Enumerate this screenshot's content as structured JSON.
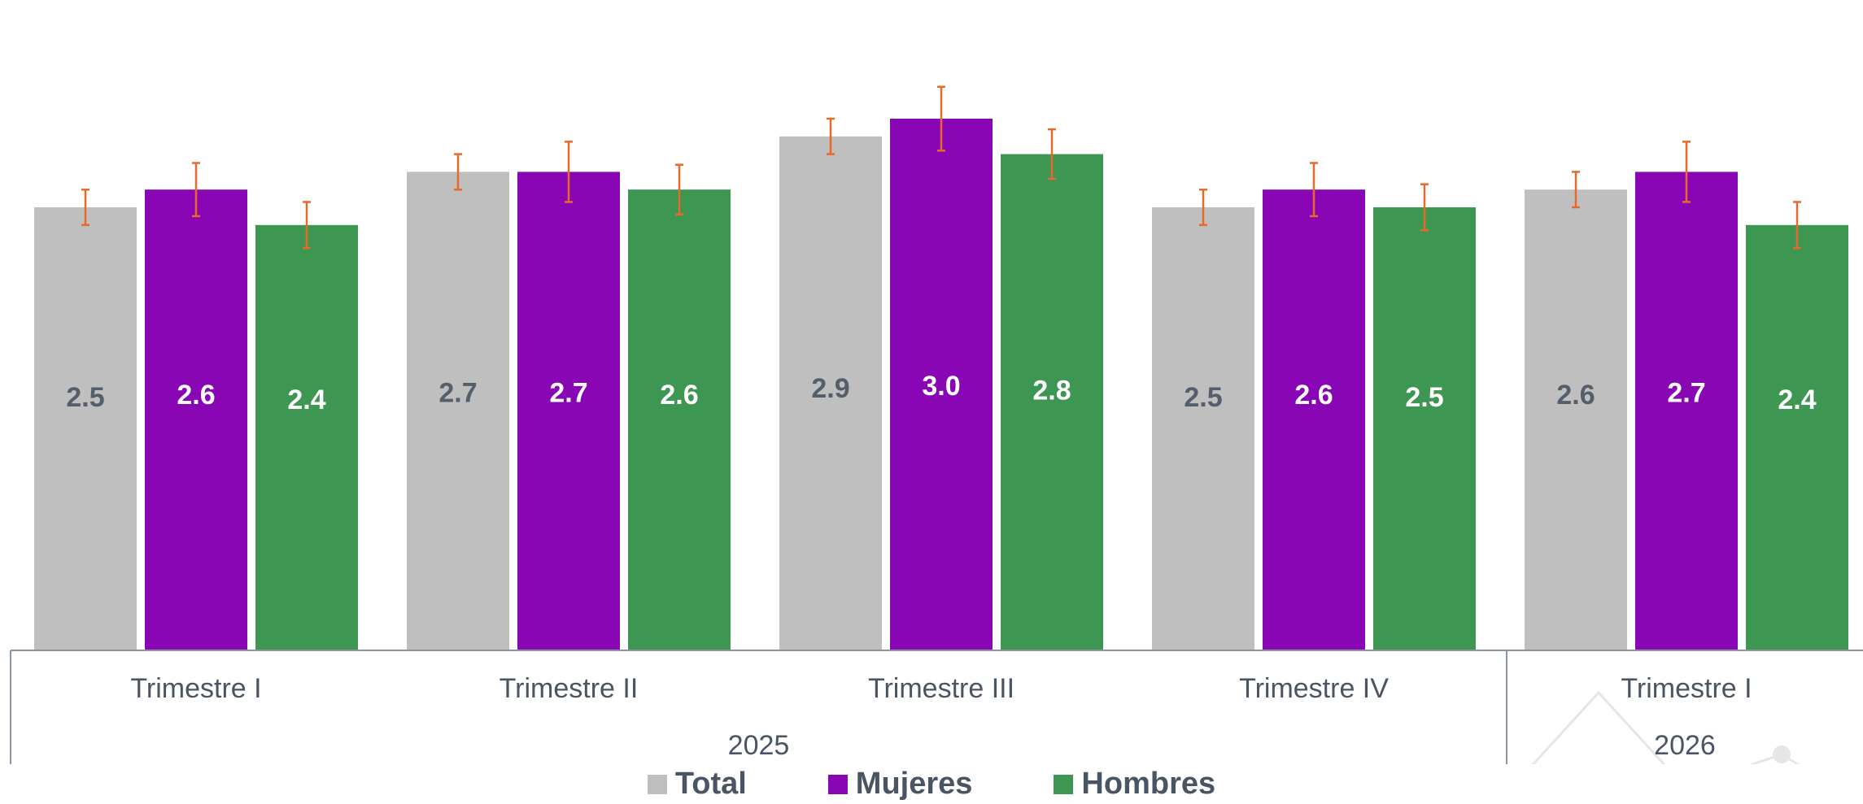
{
  "chart_data": {
    "type": "bar",
    "groups": [
      {
        "label": "Trimestre I",
        "year": "2025"
      },
      {
        "label": "Trimestre II",
        "year": "2025"
      },
      {
        "label": "Trimestre III",
        "year": "2025"
      },
      {
        "label": "Trimestre IV",
        "year": "2025"
      },
      {
        "label": "Trimestre I",
        "year": "2026"
      }
    ],
    "years": [
      "2025",
      "2026"
    ],
    "series": [
      {
        "name": "Total",
        "color": "#bfbfbf",
        "label_color": "#555f6b",
        "values": [
          2.5,
          2.7,
          2.9,
          2.5,
          2.6
        ],
        "labels": [
          "2.5",
          "2.7",
          "2.9",
          "2.5",
          "2.6"
        ],
        "error": [
          0.1,
          0.1,
          0.1,
          0.1,
          0.1
        ]
      },
      {
        "name": "Mujeres",
        "color": "#8806b4",
        "label_color": "#ffffff",
        "values": [
          2.6,
          2.7,
          3.0,
          2.6,
          2.7
        ],
        "labels": [
          "2.6",
          "2.7",
          "3.0",
          "2.6",
          "2.7"
        ],
        "error": [
          0.15,
          0.17,
          0.18,
          0.15,
          0.17
        ]
      },
      {
        "name": "Hombres",
        "color": "#3d9651",
        "label_color": "#ffffff",
        "values": [
          2.4,
          2.6,
          2.8,
          2.5,
          2.4
        ],
        "labels": [
          "2.4",
          "2.6",
          "2.8",
          "2.5",
          "2.4"
        ],
        "error": [
          0.13,
          0.14,
          0.14,
          0.13,
          0.13
        ]
      }
    ],
    "error_bar_color": "#e8692c",
    "ylim": [
      0,
      3.0
    ],
    "grid": false,
    "legend_position": "bottom"
  }
}
